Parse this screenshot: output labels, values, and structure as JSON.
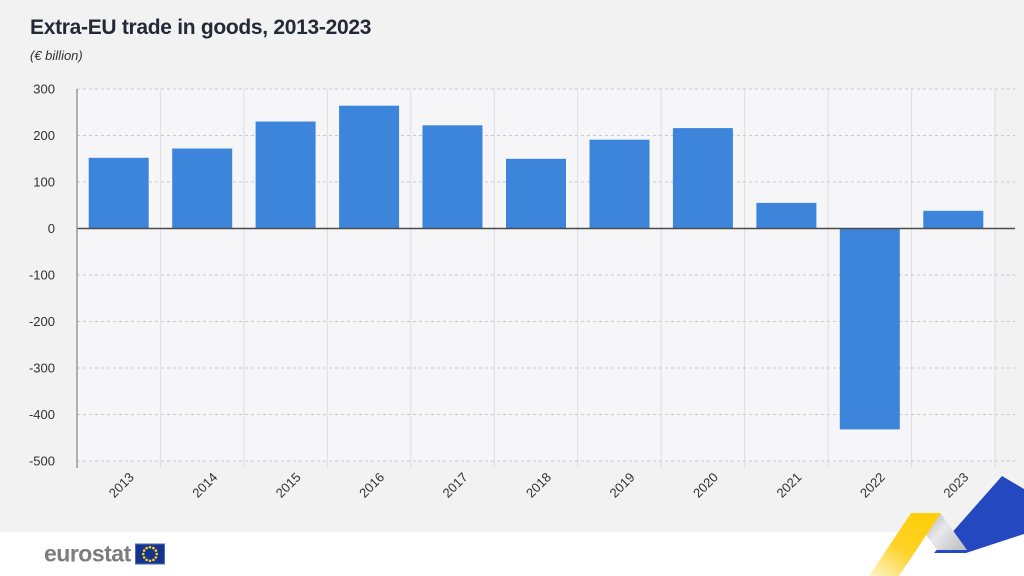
{
  "header": {
    "title": "Extra-EU trade in goods, 2013-2023",
    "subtitle": "(€ billion)"
  },
  "footer": {
    "logo_text": "eurostat",
    "flag_icon": "eu-flag"
  },
  "decoration": {
    "ribbon_icon": "yellow-gray-blue-zigzag-ribbon"
  },
  "colors": {
    "bar": "#3C85DA",
    "background": "#F2F2F3",
    "plot_background": "#F6F6F8",
    "footer_background": "#FFFFFF",
    "title_text": "#232A35",
    "axis_text": "#303030",
    "gridline": "#C7C9CC",
    "zero_line": "#4B4B4B",
    "axis_line": "#97999D",
    "column_line": "#DDDEE0",
    "logo_text": "#7D7D7D",
    "flag_blue": "#16338E",
    "star_yellow": "#F7D117",
    "ribbon_yellow": "#FFD00E",
    "ribbon_gray": "#C6C7C9",
    "ribbon_blue": "#2348BF"
  },
  "chart_data": {
    "type": "bar",
    "title": "Extra-EU trade in goods, 2013-2023",
    "unit": "€ billion",
    "categories": [
      "2013",
      "2014",
      "2015",
      "2016",
      "2017",
      "2018",
      "2019",
      "2020",
      "2021",
      "2022",
      "2023"
    ],
    "values": [
      152,
      172,
      230,
      264,
      222,
      150,
      191,
      216,
      55,
      -432,
      38
    ],
    "xlabel": "",
    "ylabel": "€ billion",
    "ylim": [
      -500,
      300
    ],
    "yticks": [
      300,
      200,
      100,
      0,
      -100,
      -200,
      -300,
      -400,
      -500
    ],
    "grid": "horizontal-dashed",
    "legend": "none",
    "bar_color": "#3C85DA"
  }
}
